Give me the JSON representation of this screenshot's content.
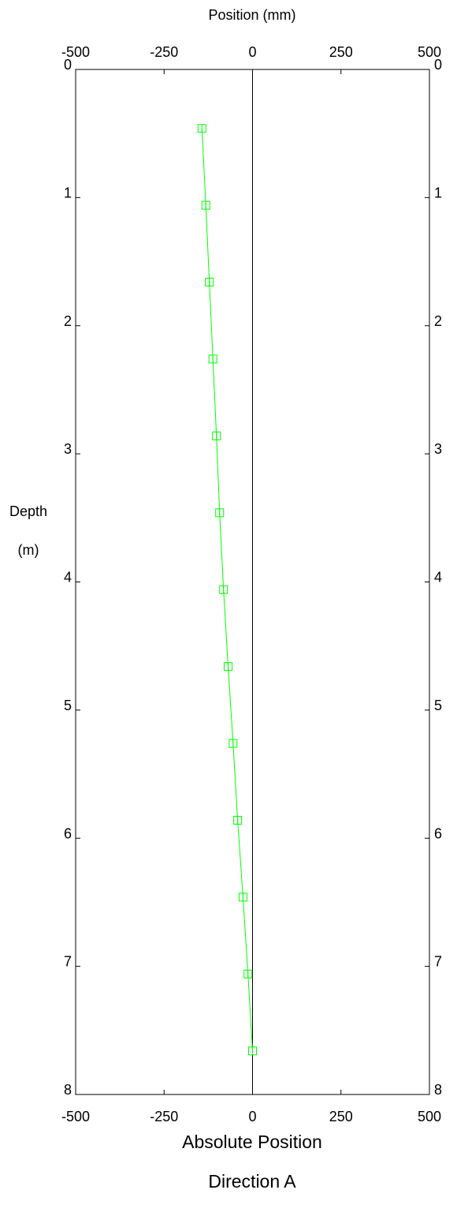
{
  "chart_data": {
    "type": "line",
    "title_lines": [
      "Absolute Position",
      "Direction  A"
    ],
    "xlabel": "Position (mm)",
    "ylabel_lines": [
      "Depth",
      "(m)"
    ],
    "xlim": [
      -500,
      500
    ],
    "ylim": [
      0,
      8
    ],
    "y_inverted": true,
    "x_ticks": [
      -500,
      -250,
      0,
      250,
      500
    ],
    "x_tick_labels": [
      "-500",
      "-250",
      "0",
      "250",
      "500"
    ],
    "y_ticks": [
      0,
      1,
      2,
      3,
      4,
      5,
      6,
      7,
      8
    ],
    "y_tick_labels": [
      "0",
      "1",
      "2",
      "3",
      "4",
      "5",
      "6",
      "7",
      "8"
    ],
    "grid": false,
    "reference_line_x": 0,
    "series": [
      {
        "color": "#00ff00",
        "marker": "square",
        "points": [
          {
            "position_mm": -143,
            "depth_m": 0.46
          },
          {
            "position_mm": -132,
            "depth_m": 1.06
          },
          {
            "position_mm": -122,
            "depth_m": 1.66
          },
          {
            "position_mm": -112,
            "depth_m": 2.26
          },
          {
            "position_mm": -102,
            "depth_m": 2.86
          },
          {
            "position_mm": -93,
            "depth_m": 3.46
          },
          {
            "position_mm": -82,
            "depth_m": 4.06
          },
          {
            "position_mm": -69,
            "depth_m": 4.66
          },
          {
            "position_mm": -55,
            "depth_m": 5.26
          },
          {
            "position_mm": -42,
            "depth_m": 5.86
          },
          {
            "position_mm": -27,
            "depth_m": 6.46
          },
          {
            "position_mm": -13,
            "depth_m": 7.06
          },
          {
            "position_mm": 0,
            "depth_m": 7.66
          }
        ]
      }
    ]
  }
}
